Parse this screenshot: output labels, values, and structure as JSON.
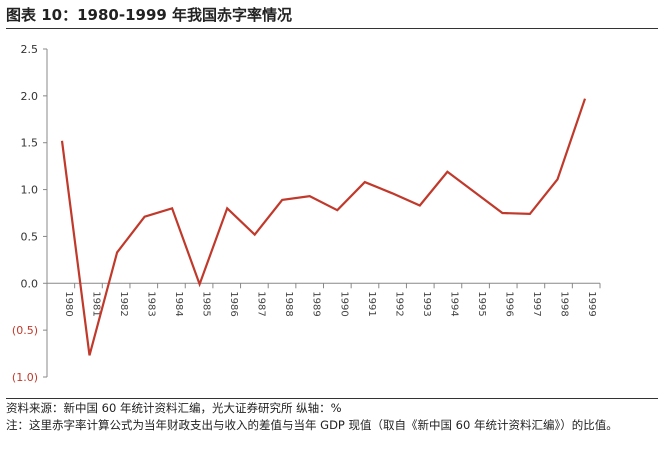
{
  "header": {
    "title": "图表 10：1980-1999 年我国赤字率情况"
  },
  "footer": {
    "source": "资料来源：新中国 60 年统计资料汇编，光大证券研究所 纵轴：%",
    "note": "注：这里赤字率计算公式为当年财政支出与收入的差值与当年 GDP 现值（取自《新中国 60 年统计资料汇编》）的比值。"
  },
  "chart_data": {
    "type": "line",
    "title": "图表 10：1980-1999 年我国赤字率情况",
    "ylabel": "%",
    "ylim": [
      -1.0,
      2.5
    ],
    "y_ticks": [
      2.5,
      2.0,
      1.5,
      1.0,
      0.5,
      0.0,
      -0.5,
      -1.0
    ],
    "y_tick_labels": [
      "2.5",
      "2.0",
      "1.5",
      "1.0",
      "0.5",
      "0.0",
      "(0.5)",
      "(1.0)"
    ],
    "x_tick_labels": [
      "1980",
      "1981",
      "1982",
      "1983",
      "1984",
      "1985",
      "1986",
      "1987",
      "1988",
      "1989",
      "1990",
      "1991",
      "1992",
      "1993",
      "1994",
      "1995",
      "1996",
      "1997",
      "1998",
      "1999"
    ],
    "grid": false,
    "series_color": "#c0392b",
    "series": [
      {
        "values": [
          1.52,
          -0.77,
          0.33,
          0.71,
          0.8,
          -0.01,
          0.8,
          0.52,
          0.89,
          0.93,
          0.78,
          1.08,
          0.96,
          0.83,
          1.19,
          0.97,
          0.75,
          0.74,
          1.11,
          1.97
        ]
      }
    ]
  }
}
